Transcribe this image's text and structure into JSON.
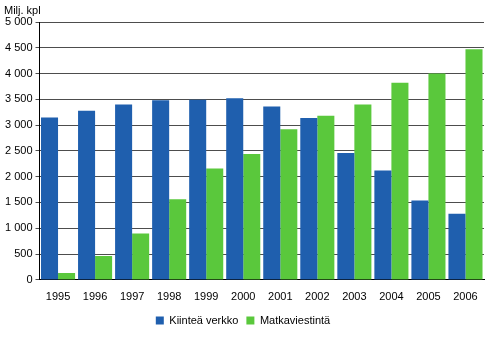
{
  "chart_data": {
    "type": "bar",
    "ylabel": "Milj. kpl",
    "categories": [
      "1995",
      "1996",
      "1997",
      "1998",
      "1999",
      "2000",
      "2001",
      "2002",
      "2003",
      "2004",
      "2005",
      "2006"
    ],
    "series": [
      {
        "name": "Kiinteä verkko",
        "color": "#1f5fae",
        "values": [
          3150,
          3280,
          3400,
          3480,
          3490,
          3520,
          3360,
          3140,
          2460,
          2120,
          1540,
          1280
        ]
      },
      {
        "name": "Matkaviestintä",
        "color": "#5ac83c",
        "values": [
          130,
          460,
          900,
          1560,
          2160,
          2440,
          2920,
          3180,
          3400,
          3820,
          4000,
          4470
        ]
      }
    ],
    "ylim": [
      0,
      5000
    ],
    "yticks": [
      0,
      500,
      {
        "value": 1000,
        "label": "1 000"
      },
      {
        "value": 1500,
        "label": "1 500"
      },
      {
        "value": 2000,
        "label": "2 000"
      },
      {
        "value": 2500,
        "label": "2 500"
      },
      {
        "value": 3000,
        "label": "3 000"
      },
      {
        "value": 3500,
        "label": "3 500"
      },
      {
        "value": 4000,
        "label": "4 000"
      },
      {
        "value": 4500,
        "label": "4 500"
      },
      {
        "value": 5000,
        "label": "5 000"
      }
    ],
    "grid": true,
    "legend": "bottom"
  }
}
